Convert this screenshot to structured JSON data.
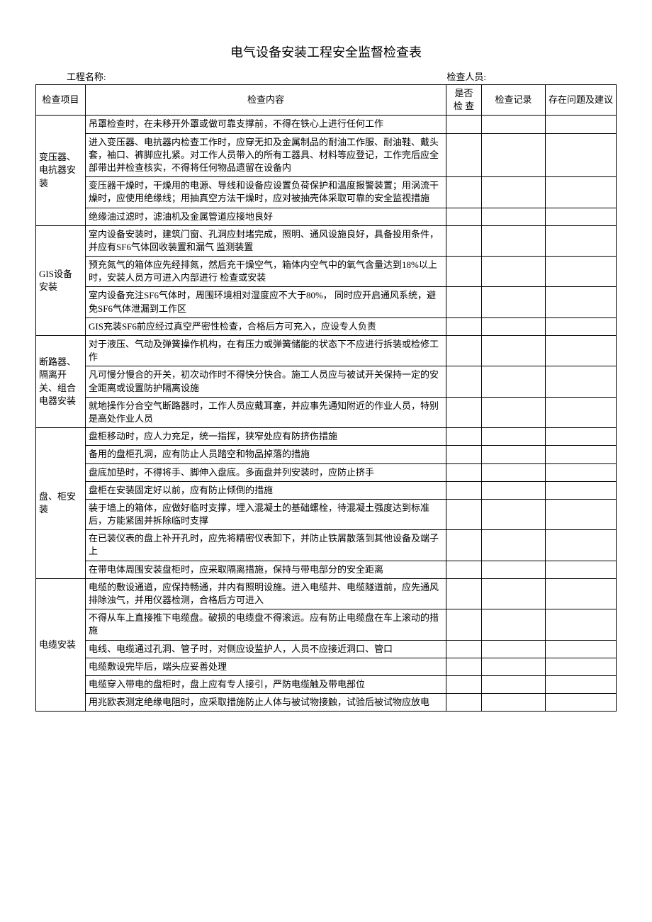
{
  "title": "电气设备安装工程安全监督检查表",
  "header": {
    "project_name_label": "工程名称:",
    "inspector_label": "检查人员:"
  },
  "columns": {
    "project": "检查项目",
    "content": "检查内容",
    "check": "是否 检 查",
    "record": "检查记录",
    "suggest": "存在问题及建议"
  },
  "sections": [
    {
      "project": "变压器、电抗器安装",
      "items": [
        "吊罩检查时，在未移开外罩或做可靠支撑前，不得在铁心上进行任何工作",
        "进入变压器、电抗器内检查工作时，应穿无扣及金属制品的耐油工作服、耐油鞋、戴头套，袖口、裤脚应扎紧。对工作人员带入的所有工器具、材料等应登记，工作完后应全部带出并检查核实，不得将任何物品遗留在设备内",
        "变压器干燥时，干燥用的电源、导线和设备应设置负荷保护和温度报警装置；用涡流干燥时，应使用绝缘线；用抽真空方法干燥时，应对被抽壳体采取可靠的安全监视措施",
        "绝缘油过滤时，滤油机及金属管道应接地良好"
      ]
    },
    {
      "project": "GIS设备 安装",
      "items": [
        "室内设备安装时，建筑门窗、孔洞应封堵完成，照明、通风设施良好，具备投用条件，并应有SF6气体回收装置和漏气 监测装置",
        "预充氮气的箱体应先经排氮，然后充干燥空气，箱体内空气中的氧气含量达到18%以上时，安装人员方可进入内部进行 检查或安装",
        "室内设备充注SF6气体时，周围环境相对湿度应不大于80%， 同时应开启通风系统，避免SF6气体泄漏到工作区",
        "GIS充装SF6前应经过真空严密性检查，合格后方可充入，应设专人负责"
      ]
    },
    {
      "project": "断路器、隔离开关、组合电器安装",
      "items": [
        "对于液压、气动及弹簧操作机构，在有压力或弹簧储能的状态下不应进行拆装或检修工作",
        "凡可慢分慢合的开关，初次动作时不得快分快合。施工人员应与被试开关保持一定的安全距离或设置防护隔离设施",
        "就地操作分合空气断路器时，工作人员应戴耳塞，并应事先通知附近的作业人员，特别是高处作业人员"
      ]
    },
    {
      "project": "盘、柜安装",
      "items": [
        "盘柜移动时，应人力充足，统一指挥，狭窄处应有防挤伤措施",
        "备用的盘柜孔洞，应有防止人员踏空和物品掉落的措施",
        "盘底加垫时，不得将手、脚伸入盘底。多面盘并列安装时，应防止挤手",
        "盘柜在安装固定好以前，应有防止倾倒的措施",
        "装于墙上的箱体，应做好临时支撑，埋入混凝土的基础螺栓，待混凝土强度达到标准后，方能紧固并拆除临时支撑",
        "在已装仪表的盘上补开孔时，应先将精密仪表卸下，并防止铁屑散落到其他设备及端子上",
        "在带电体周围安装盘柜时，应采取隔离措施，保持与带电部分的安全距离"
      ]
    },
    {
      "project": "电缆安装",
      "items": [
        "电缆的敷设通道，应保持畅通，井内有照明设施。进入电缆井、电缆隧道前，应先通风排除浊气，并用仪器检测，合格后方可进入",
        "不得从车上直接推下电缆盘。破损的电缆盘不得滚运。应有防止电缆盘在车上滚动的措施",
        "电线、电缆通过孔洞、管子时，对侧应设监护人，人员不应接近洞口、管口",
        "电缆敷设完毕后，端头应妥善处理",
        "电缆穿入带电的盘柜时，盘上应有专人接引，严防电缆触及带电部位",
        "用兆欧表测定绝缘电阻时，应采取措施防止人体与被试物接触，试验后被试物应放电"
      ]
    }
  ]
}
